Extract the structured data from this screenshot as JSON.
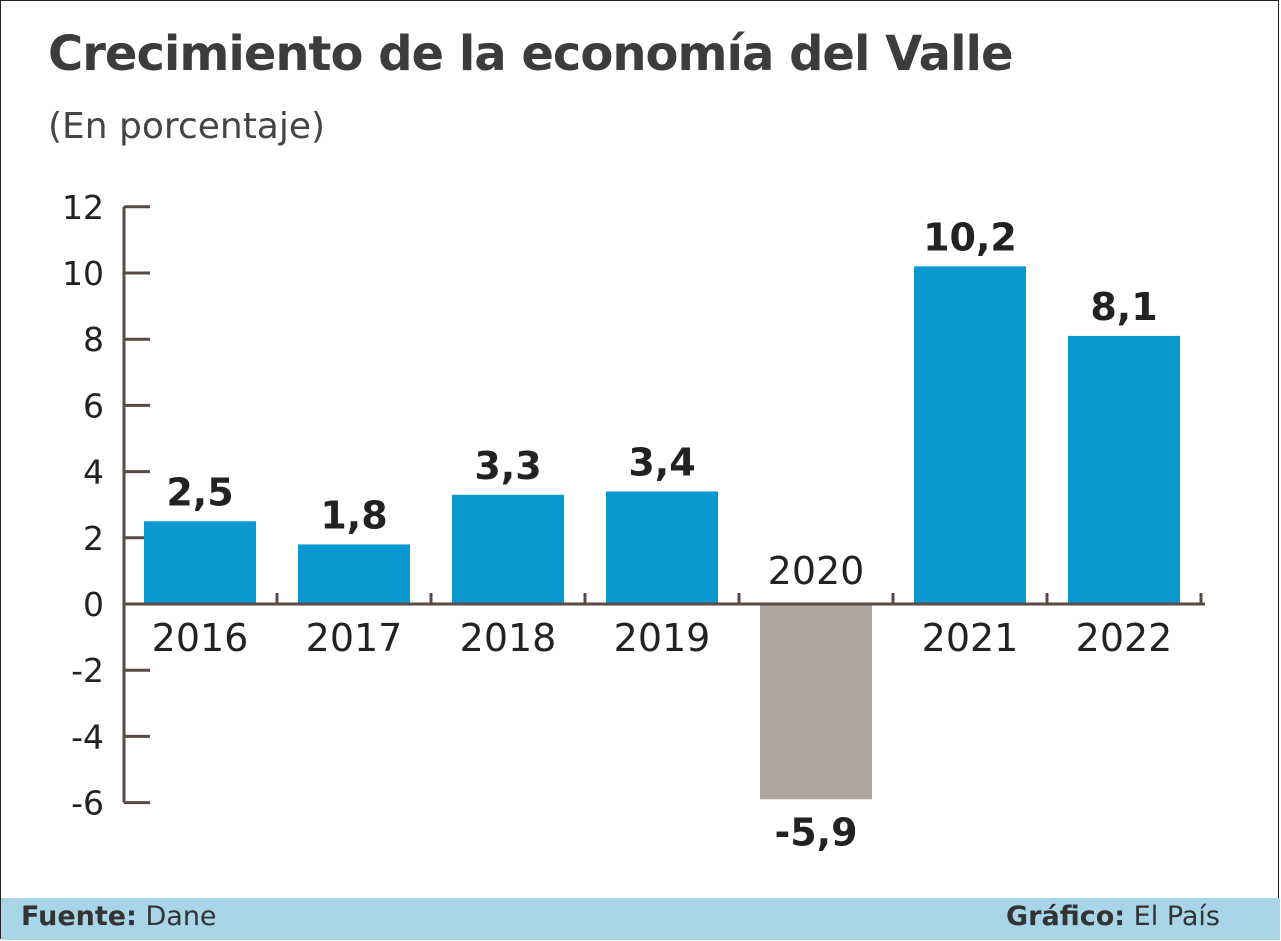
{
  "chart_data": {
    "type": "bar",
    "title": "Crecimiento de la economía del Valle",
    "subtitle": "(En porcentaje)",
    "categories": [
      "2016",
      "2017",
      "2018",
      "2019",
      "2020",
      "2021",
      "2022"
    ],
    "values": [
      2.5,
      1.8,
      3.3,
      3.4,
      -5.9,
      10.2,
      8.1
    ],
    "value_labels": [
      "2,5",
      "1,8",
      "3,3",
      "3,4",
      "-5,9",
      "10,2",
      "8,1"
    ],
    "y_ticks": [
      12,
      10,
      8,
      6,
      4,
      2,
      0,
      -2,
      -4,
      -6
    ],
    "ylim": [
      -6,
      12
    ],
    "xlabel": "",
    "ylabel": "",
    "grid": false,
    "colors": {
      "positive": "#0a98d1",
      "negative": "#b1a5a1",
      "axis": "#5a4a44",
      "text": "#222222"
    }
  },
  "footer": {
    "source_label": "Fuente",
    "source_value": "Dane",
    "credit_label": "Gráfico",
    "credit_value": "El País"
  }
}
